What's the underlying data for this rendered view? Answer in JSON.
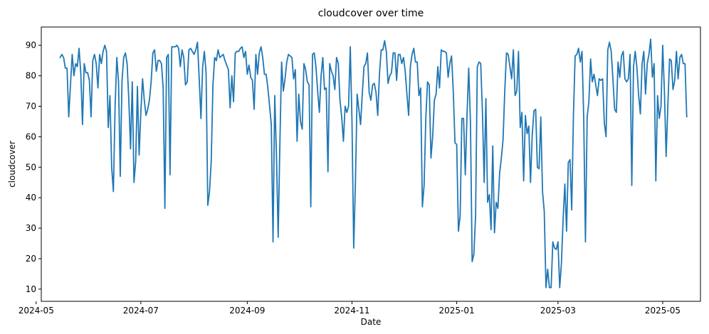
{
  "chart_data": {
    "type": "line",
    "title": "cloudcover over time",
    "xlabel": "Date",
    "ylabel": "cloudcover",
    "x_start": "2024-05-15",
    "x_step_days": 1,
    "xlim": [
      "2024-05-04",
      "2025-05-23"
    ],
    "ylim": [
      6,
      96
    ],
    "x_ticks": [
      "2024-05-01",
      "2024-07-01",
      "2024-09-01",
      "2024-11-01",
      "2025-01-01",
      "2025-03-01",
      "2025-05-01"
    ],
    "x_tick_labels": [
      "2024-05",
      "2024-07",
      "2024-09",
      "2024-11",
      "2025-01",
      "2025-03",
      "2025-05"
    ],
    "y_ticks": [
      10,
      20,
      30,
      40,
      50,
      60,
      70,
      80,
      90
    ],
    "y_tick_labels": [
      "10",
      "20",
      "30",
      "40",
      "50",
      "60",
      "70",
      "80",
      "90"
    ],
    "grid": false,
    "series": [
      {
        "name": "",
        "color": "#1f77b4",
        "values": [
          86,
          87,
          86,
          82.5,
          82.5,
          66.5,
          77,
          87,
          80,
          84,
          83,
          89,
          81,
          64,
          84,
          81,
          81,
          78.5,
          66.5,
          85,
          87,
          84,
          76,
          87,
          84,
          88,
          90,
          88,
          63,
          73.5,
          50,
          42,
          70,
          86,
          78,
          47,
          78,
          86,
          87.5,
          84,
          72,
          56,
          78,
          45,
          52,
          76.5,
          54,
          68,
          79,
          72,
          67,
          69,
          72,
          78,
          87.5,
          88.5,
          81.5,
          85,
          85,
          84,
          76,
          36.5,
          86,
          87,
          47.5,
          89.5,
          89.5,
          89.5,
          90,
          89,
          83,
          88.5,
          86,
          77,
          78,
          88.5,
          89,
          88,
          87,
          88.5,
          91,
          79,
          66,
          83,
          88,
          81,
          37.5,
          42,
          52,
          77,
          86,
          85,
          88.5,
          86,
          86.5,
          87,
          85,
          83.5,
          82,
          69.5,
          80,
          71.5,
          87.5,
          88,
          88,
          89,
          89.5,
          86,
          88,
          80.5,
          83.5,
          79.5,
          78.5,
          69,
          87,
          80.5,
          87.5,
          89.5,
          86,
          80.5,
          80.5,
          76,
          70,
          64,
          25.5,
          73.5,
          54,
          27,
          58,
          84.5,
          75,
          79,
          84.5,
          87,
          86.5,
          86,
          79,
          82,
          58.5,
          74,
          65,
          62.5,
          84,
          82,
          78,
          77,
          37,
          87,
          87.5,
          83,
          75,
          68,
          80,
          86,
          75.5,
          76,
          48.5,
          84,
          81.5,
          80,
          75.5,
          86,
          84,
          72,
          66.5,
          58.5,
          70,
          68,
          70,
          89.5,
          65,
          23.5,
          45,
          74,
          69,
          64,
          74,
          83,
          84,
          87.5,
          74.5,
          72,
          77,
          77.5,
          74.5,
          67,
          80.5,
          88.5,
          88.5,
          91.5,
          88,
          77.5,
          80,
          81,
          87.5,
          87.5,
          78.5,
          87,
          87,
          84,
          86,
          81.5,
          74,
          67,
          83,
          87,
          89,
          84.5,
          84.5,
          73.5,
          76,
          37,
          44,
          66,
          78,
          77,
          53,
          60,
          72,
          74,
          83,
          76,
          88.5,
          88,
          88,
          87.5,
          79.5,
          84,
          86.5,
          75,
          58,
          57.5,
          29,
          34,
          66,
          66,
          47.5,
          67,
          82.5,
          65,
          19,
          21.5,
          34,
          83,
          84.5,
          84,
          68,
          45,
          72.5,
          38.5,
          41,
          29.5,
          57,
          28.5,
          38.5,
          36.5,
          48,
          53,
          59,
          75,
          87.5,
          87,
          83,
          79,
          88.5,
          73.5,
          75,
          88,
          63,
          68,
          45.5,
          67,
          61,
          63.5,
          45,
          60.5,
          68.5,
          69,
          50,
          49.5,
          66.5,
          42,
          35.5,
          10.5,
          16.5,
          10.5,
          10.5,
          25.5,
          23.5,
          23,
          25.5,
          10.5,
          18.5,
          33,
          44.5,
          29,
          51.5,
          52.5,
          36,
          67,
          86.5,
          87,
          89,
          84.5,
          88,
          66,
          25.5,
          66.5,
          71.5,
          85.5,
          78,
          80.5,
          77,
          73.5,
          79,
          78.5,
          79,
          64.5,
          60,
          88.5,
          91,
          88,
          79,
          69,
          68,
          84.5,
          79.5,
          86.5,
          88,
          79,
          78,
          79,
          87,
          44,
          83,
          88,
          82.5,
          73.5,
          67.5,
          84,
          88,
          74,
          84,
          87,
          92,
          79.5,
          84,
          45.5,
          73.5,
          66,
          70,
          90,
          75,
          53.5,
          70,
          85.5,
          85,
          75.5,
          78.5,
          88,
          79,
          86,
          87,
          84,
          84,
          66.5
        ]
      }
    ]
  }
}
